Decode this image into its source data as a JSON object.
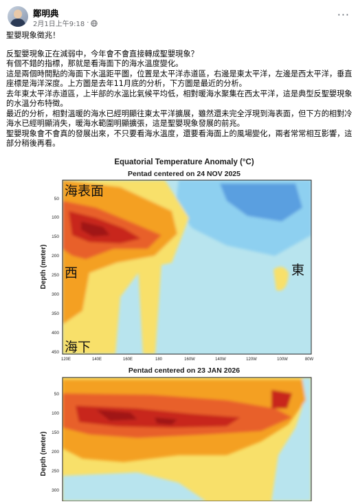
{
  "post": {
    "author": "鄭明典",
    "timestamp": "2月1日上午9:18",
    "separator": "·",
    "audience_icon": "globe-icon",
    "more_icon": "ellipsis-icon",
    "more_label": "···",
    "lines": [
      "聖嬰現象徵兆！",
      "反聖嬰現象正在減弱中，今年會不會直接轉成聖嬰現象？",
      "有個不錯的指標，那就是看海面下的海水溫度變化。",
      "這是兩個時間點的海面下水溫距平圖，位置是太平洋赤道區，右邊是東太平洋，左邊是西太平洋，垂直座標是海洋深度。上方圖是去年11月底的分析，下方圖是最近的分析。",
      "去年東太平洋赤道區，上半部的水溫比氣候平均低，相對暖海水聚集在西太平洋，這是典型反聖嬰現象的水溫分布特徵。",
      "最近的分析，相對溫暖的海水已經明顯往東太平洋擴展，雖然還未完全浮現到海表面，但下方的相對冷海水已經明顯消失，暖海水範圍明顯擴張，這是聖嬰現象發展的前兆。",
      "聖嬰現象會不會真的發展出來，不只要看海水溫度，還要看海面上的風場變化，兩者常常相互影響，這部分稍後再看。"
    ]
  },
  "figure": {
    "title": "Equatorial Temperature Anomaly (°C)",
    "panel1_subtitle": "Pentad centered on 24 NOV 2025",
    "panel2_subtitle": "Pentad centered on 23 JAN 2026",
    "ylabel": "Depth (meter)",
    "depth_ticks1": [
      "50",
      "100",
      "150",
      "200",
      "250",
      "300",
      "350",
      "400",
      "450"
    ],
    "depth_ticks2": [
      "50",
      "100",
      "150",
      "200",
      "250",
      "300"
    ],
    "lon_ticks": [
      "120E",
      "140E",
      "160E",
      "180",
      "160W",
      "140W",
      "120W",
      "100W",
      "80W"
    ],
    "annot_surface": "海表面",
    "annot_west": "西",
    "annot_east": "東",
    "annot_subsurface": "海下",
    "colors": {
      "cool_light": "#b8e4ee",
      "cool_mid": "#8ed0f0",
      "cool_dark": "#5a9fe0",
      "warm_light": "#f8e06a",
      "warm_mid": "#f4a020",
      "warm_strong": "#e8612a",
      "warm_dark": "#c8281e",
      "warm_max": "#a01818"
    }
  }
}
